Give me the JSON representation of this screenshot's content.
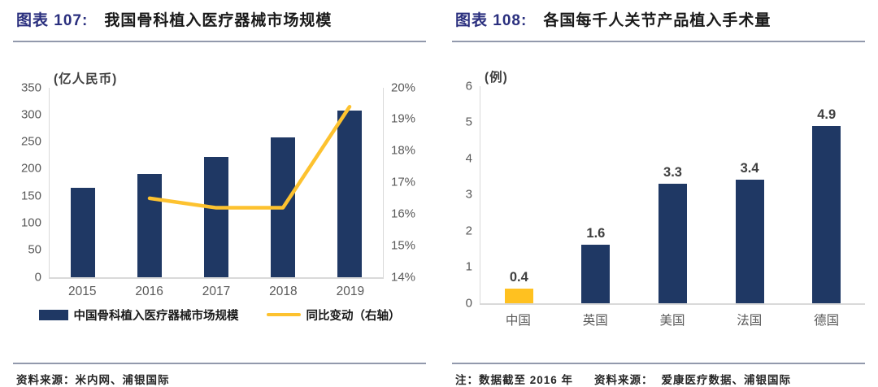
{
  "colors": {
    "navy": "#1F3864",
    "gold": "#FDC22F",
    "title_blue": "#2A2F7E",
    "axis_text": "#595959",
    "axis_line": "#D9D9D9",
    "divider": "#9299AC"
  },
  "panels": {
    "left": {
      "fig_label": "图表 107:",
      "title": "我国骨科植入医疗器械市场规模",
      "source_label": "资料来源：",
      "source_text": "米内网、浦银国际"
    },
    "right": {
      "fig_label": "图表 108:",
      "title": "各国每千人关节产品植入手术量",
      "note": "注：数据截至 2016 年",
      "source_label": "资料来源：",
      "source_text": "爱康医疗数据、浦银国际"
    }
  },
  "chart_data": [
    {
      "type": "bar",
      "subtype": "bar+line-dual-axis",
      "title": "我国骨科植入医疗器械市场规模",
      "unit_label": "(亿人民币)",
      "categories": [
        "2015",
        "2016",
        "2017",
        "2018",
        "2019"
      ],
      "series": [
        {
          "name": "中国骨科植入医疗器械市场规模",
          "type": "bar",
          "axis": "left",
          "color": "#1F3864",
          "values": [
            164,
            191,
            222,
            258,
            308
          ]
        },
        {
          "name": "同比变动（右轴）",
          "type": "line",
          "axis": "right",
          "color": "#FDC22F",
          "values": [
            null,
            16.5,
            16.2,
            16.2,
            19.4
          ]
        }
      ],
      "left_axis": {
        "min": 0,
        "max": 350,
        "step": 50,
        "ticks": [
          "350",
          "300",
          "250",
          "200",
          "150",
          "100",
          "50",
          "0"
        ]
      },
      "right_axis": {
        "min": 14,
        "max": 20,
        "step": 1,
        "ticks": [
          "20%",
          "19%",
          "18%",
          "17%",
          "16%",
          "15%",
          "14%"
        ]
      },
      "grid": false,
      "legend_position": "bottom"
    },
    {
      "type": "bar",
      "title": "各国每千人关节产品植入手术量",
      "unit_label": "(例)",
      "categories": [
        "中国",
        "英国",
        "美国",
        "法国",
        "德国"
      ],
      "values": [
        0.4,
        1.6,
        3.3,
        3.4,
        4.9
      ],
      "value_labels": [
        "0.4",
        "1.6",
        "3.3",
        "3.4",
        "4.9"
      ],
      "bar_colors": [
        "#FFC120",
        "#1F3864",
        "#1F3864",
        "#1F3864",
        "#1F3864"
      ],
      "y_axis": {
        "min": 0,
        "max": 6,
        "step": 1,
        "ticks": [
          "6",
          "5",
          "4",
          "3",
          "2",
          "1",
          "0"
        ]
      },
      "grid": false,
      "legend_position": "none"
    }
  ]
}
